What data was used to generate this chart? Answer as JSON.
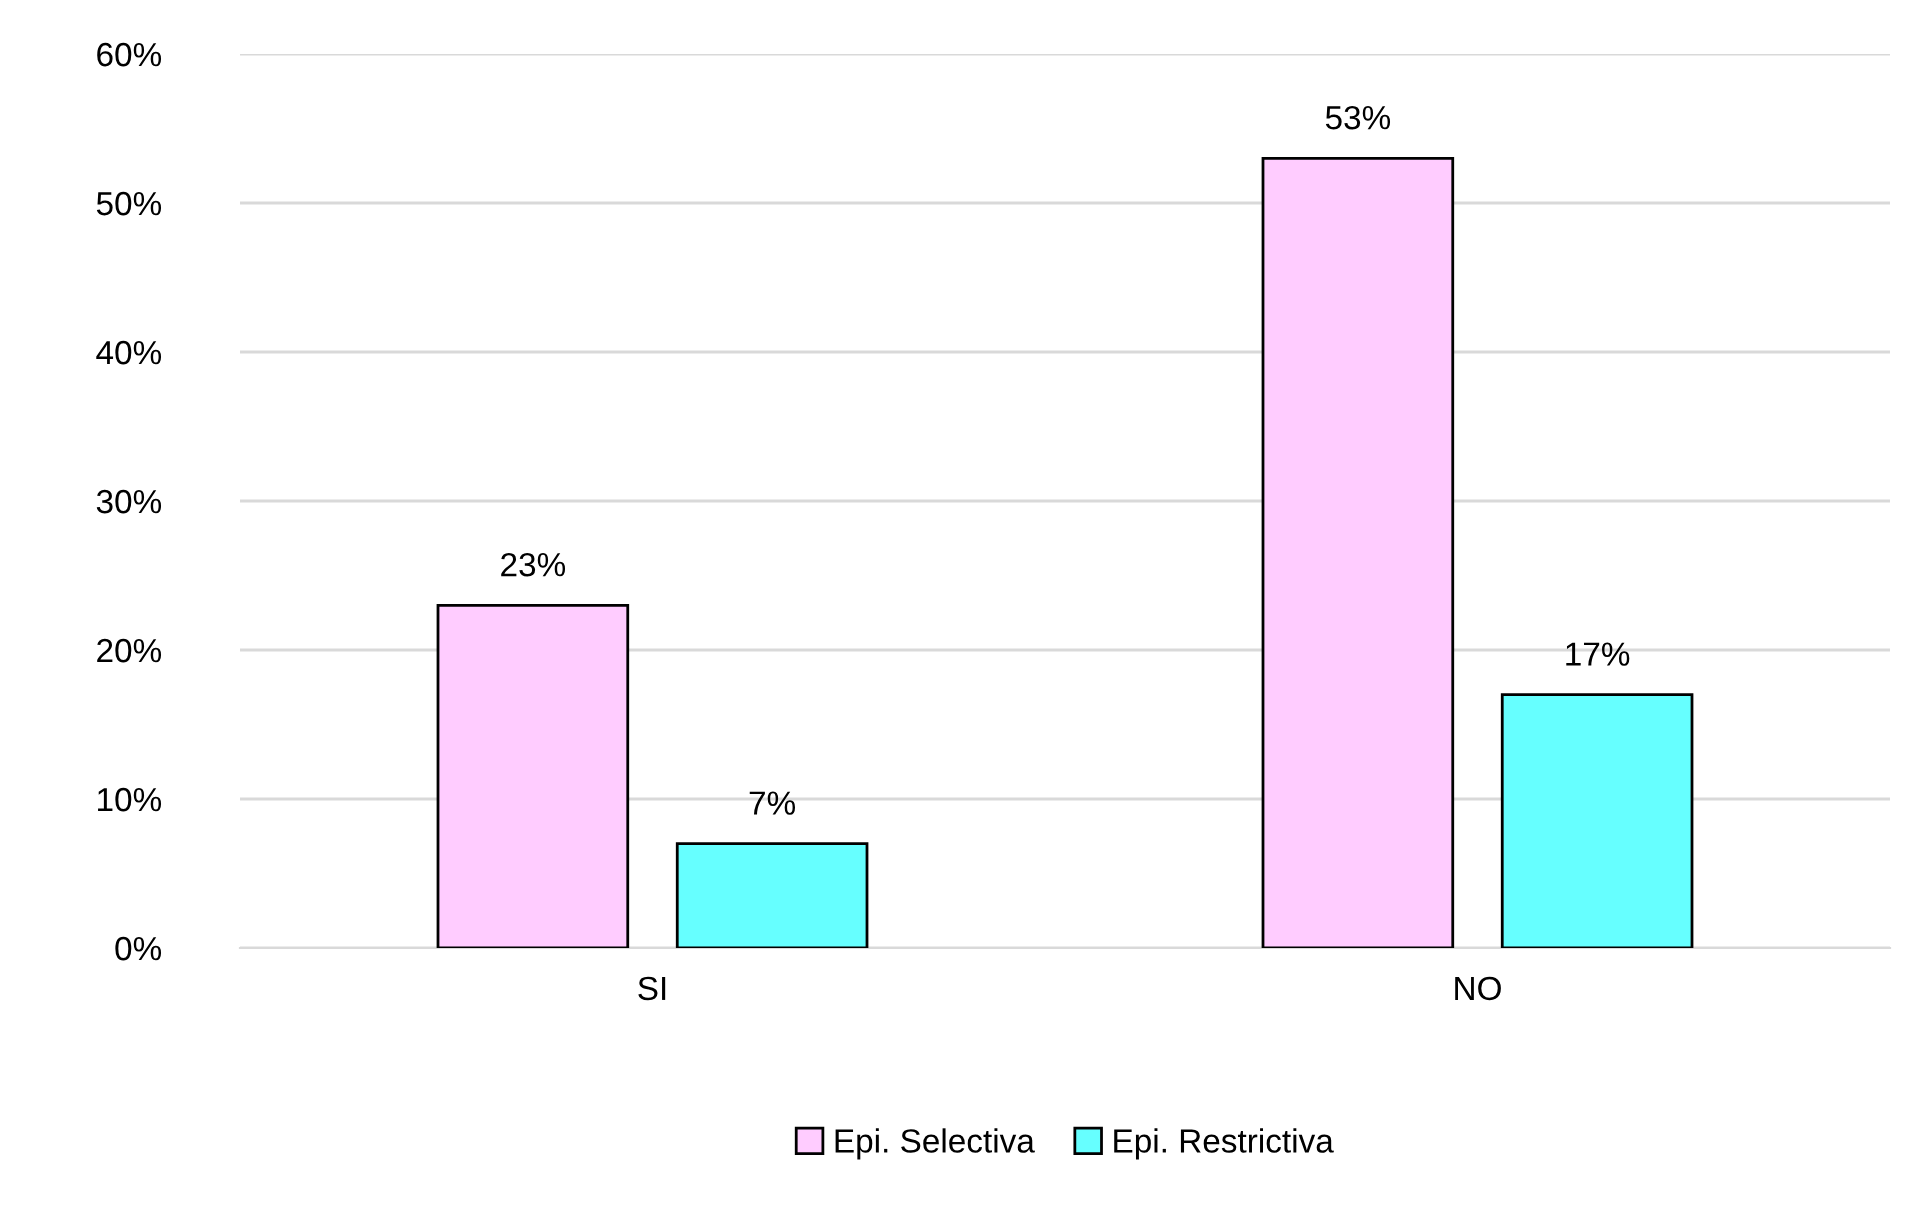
{
  "chart_data": {
    "type": "bar",
    "categories": [
      "SI",
      "NO"
    ],
    "series": [
      {
        "name": "Epi. Selectiva",
        "color": "#ffccff",
        "values": [
          23,
          53
        ],
        "value_labels": [
          "23%",
          "53%"
        ]
      },
      {
        "name": "Epi. Restrictiva",
        "color": "#66ffff",
        "values": [
          7,
          17
        ],
        "value_labels": [
          "7%",
          "17%"
        ]
      }
    ],
    "ylim": [
      0,
      60
    ],
    "yticks": [
      {
        "value": 0,
        "label": "0%"
      },
      {
        "value": 10,
        "label": "10%"
      },
      {
        "value": 20,
        "label": "20%"
      },
      {
        "value": 30,
        "label": "30%"
      },
      {
        "value": 40,
        "label": "40%"
      },
      {
        "value": 50,
        "label": "50%"
      },
      {
        "value": 60,
        "label": "60%"
      }
    ],
    "grid": "y",
    "legend": "bottom"
  }
}
